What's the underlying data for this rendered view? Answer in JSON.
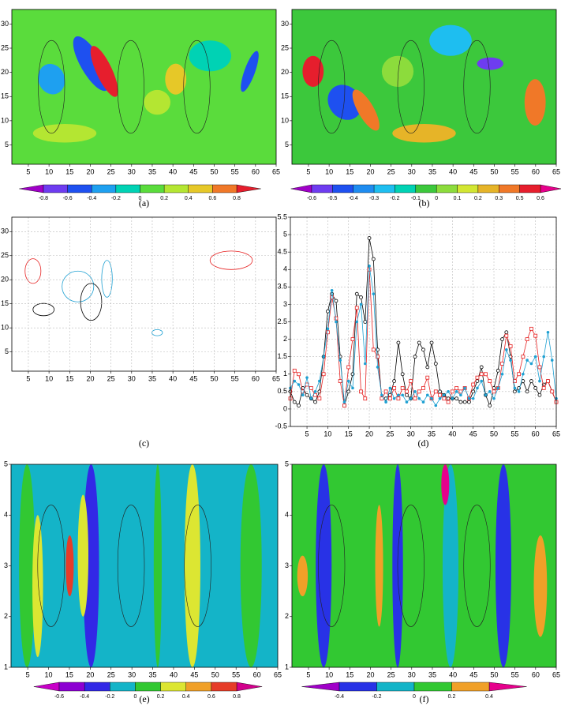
{
  "chart_data": [
    {
      "type": "contour",
      "caption": "(a)",
      "xlim": [
        1,
        65
      ],
      "ylim": [
        1,
        33
      ],
      "xticks": [
        5,
        10,
        15,
        20,
        25,
        30,
        35,
        40,
        45,
        50,
        55,
        60,
        65
      ],
      "yticks": [
        5,
        10,
        15,
        20,
        25,
        30
      ],
      "colorbar": {
        "ticks": [
          -0.8,
          -0.6,
          -0.4,
          -0.2,
          0,
          0.2,
          0.4,
          0.6,
          0.8
        ],
        "colors": [
          "#a000c8",
          "#6e3cf0",
          "#1e50f0",
          "#1ea0f0",
          "#00d2b4",
          "#5adc3c",
          "#b4e632",
          "#e6c828",
          "#f07828",
          "#e61e2d",
          "#e6008c"
        ]
      }
    },
    {
      "type": "contour",
      "caption": "(b)",
      "xlim": [
        1,
        65
      ],
      "ylim": [
        1,
        33
      ],
      "xticks": [
        5,
        10,
        15,
        20,
        25,
        30,
        35,
        40,
        45,
        50,
        55,
        60,
        65
      ],
      "yticks": [
        5,
        10,
        15,
        20,
        25,
        30
      ],
      "colorbar": {
        "ticks": [
          -0.6,
          -0.5,
          -0.4,
          -0.3,
          -0.2,
          -0.1,
          0,
          0.1,
          0.2,
          0.3,
          0.5,
          0.6
        ],
        "colors": [
          "#a000c8",
          "#6e3cf0",
          "#1e50f0",
          "#1e8cf0",
          "#1ebef0",
          "#00d2b4",
          "#3cc83c",
          "#8cdc3c",
          "#d2e632",
          "#e6b428",
          "#f07828",
          "#e61e2d",
          "#e6008c"
        ]
      }
    },
    {
      "type": "contour",
      "caption": "(c)",
      "xlim": [
        1,
        65
      ],
      "ylim": [
        1,
        33
      ],
      "xticks": [
        5,
        10,
        15,
        20,
        25,
        30,
        35,
        40,
        45,
        50,
        55,
        60,
        65
      ],
      "yticks": [
        5,
        10,
        15,
        20,
        25,
        30
      ],
      "grid": true
    },
    {
      "type": "line",
      "caption": "(d)",
      "xlim": [
        1,
        65
      ],
      "ylim": [
        -0.5,
        5.5
      ],
      "grid": true,
      "xticks": [
        5,
        10,
        15,
        20,
        25,
        30,
        35,
        40,
        45,
        50,
        55,
        60,
        65
      ],
      "yticks": [
        -0.5,
        0,
        0.5,
        1,
        1.5,
        2,
        2.5,
        3,
        3.5,
        4,
        4.5,
        5,
        5.5
      ],
      "x": [
        1,
        2,
        3,
        4,
        5,
        6,
        7,
        8,
        9,
        10,
        11,
        12,
        13,
        14,
        15,
        16,
        17,
        18,
        19,
        20,
        21,
        22,
        23,
        24,
        25,
        26,
        27,
        28,
        29,
        30,
        31,
        32,
        33,
        34,
        35,
        36,
        37,
        38,
        39,
        40,
        41,
        42,
        43,
        44,
        45,
        46,
        47,
        48,
        49,
        50,
        51,
        52,
        53,
        54,
        55,
        56,
        57,
        58,
        59,
        60,
        61,
        62,
        63,
        64,
        65
      ],
      "series": [
        {
          "color": "#000000",
          "marker": "circle",
          "values": [
            0.5,
            0.2,
            0.1,
            0.6,
            0.4,
            0.3,
            0.2,
            0.5,
            1.5,
            2.8,
            3.3,
            3.1,
            1.5,
            0.1,
            0.5,
            1.0,
            3.3,
            3.2,
            2.5,
            4.9,
            4.3,
            1.7,
            0.3,
            0.3,
            0.4,
            0.8,
            1.9,
            1.0,
            0.4,
            0.3,
            1.5,
            1.9,
            1.7,
            1.2,
            1.9,
            1.3,
            0.5,
            0.4,
            0.3,
            0.3,
            0.3,
            0.2,
            0.2,
            0.2,
            0.5,
            0.8,
            1.2,
            0.4,
            0.1,
            0.6,
            1.1,
            2.0,
            2.2,
            1.5,
            0.5,
            0.6,
            0.8,
            0.5,
            0.8,
            0.6,
            0.4,
            0.7,
            0.8,
            0.5,
            0.2
          ]
        },
        {
          "color": "#e62020",
          "marker": "square",
          "values": [
            0.3,
            1.1,
            1.0,
            0.5,
            0.7,
            0.6,
            0.4,
            0.3,
            1.0,
            2.2,
            3.2,
            2.6,
            0.8,
            0.1,
            1.2,
            2.0,
            2.9,
            0.5,
            0.3,
            4.0,
            1.7,
            1.5,
            0.3,
            0.5,
            0.3,
            0.6,
            0.3,
            0.6,
            0.5,
            0.8,
            0.3,
            0.5,
            0.6,
            0.9,
            0.3,
            0.5,
            0.4,
            0.3,
            0.2,
            0.5,
            0.6,
            0.5,
            0.6,
            0.3,
            0.7,
            0.9,
            1.0,
            1.0,
            0.8,
            0.5,
            0.6,
            1.3,
            2.1,
            1.8,
            0.8,
            1.0,
            1.5,
            2.0,
            2.3,
            2.1,
            1.2,
            0.6,
            0.8,
            0.5,
            0.2
          ]
        },
        {
          "color": "#1ea0d2",
          "marker": "dot",
          "values": [
            0.6,
            0.8,
            0.7,
            0.4,
            0.9,
            0.3,
            0.5,
            0.8,
            1.5,
            2.3,
            3.4,
            2.5,
            1.4,
            0.2,
            0.8,
            0.6,
            2.5,
            3.0,
            1.3,
            4.1,
            3.3,
            1.2,
            0.4,
            0.2,
            0.6,
            0.3,
            0.4,
            0.4,
            0.2,
            0.3,
            0.5,
            0.3,
            0.2,
            0.4,
            0.3,
            0.1,
            0.3,
            0.4,
            0.5,
            0.3,
            0.5,
            0.4,
            0.6,
            0.3,
            0.3,
            0.6,
            0.8,
            0.4,
            0.5,
            0.3,
            0.6,
            1.0,
            1.7,
            1.4,
            0.6,
            0.5,
            1.0,
            1.4,
            1.3,
            1.5,
            0.8,
            1.5,
            2.2,
            1.4,
            0.3
          ]
        }
      ]
    },
    {
      "type": "contour",
      "caption": "(e)",
      "xlim": [
        1,
        65
      ],
      "ylim": [
        1,
        5
      ],
      "xticks": [
        5,
        10,
        15,
        20,
        25,
        30,
        35,
        40,
        45,
        50,
        55,
        60,
        65
      ],
      "yticks": [
        1,
        2,
        3,
        4,
        5
      ],
      "colorbar": {
        "ticks": [
          -0.6,
          -0.4,
          -0.2,
          0,
          0.2,
          0.4,
          0.6,
          0.8
        ],
        "colors": [
          "#c800c8",
          "#8c00d2",
          "#3228e6",
          "#14b4c8",
          "#32c832",
          "#dce632",
          "#f0a028",
          "#e63c28",
          "#d2008c"
        ]
      }
    },
    {
      "type": "contour",
      "caption": "(f)",
      "xlim": [
        1,
        65
      ],
      "ylim": [
        1,
        5
      ],
      "xticks": [
        5,
        10,
        15,
        20,
        25,
        30,
        35,
        40,
        45,
        50,
        55,
        60,
        65
      ],
      "yticks": [
        1,
        2,
        3,
        4,
        5
      ],
      "colorbar": {
        "ticks": [
          -0.4,
          -0.2,
          0,
          0.2,
          0.4
        ],
        "colors": [
          "#a000c8",
          "#2832e6",
          "#14b4c8",
          "#32c832",
          "#f0a028",
          "#e6008c"
        ]
      }
    }
  ]
}
